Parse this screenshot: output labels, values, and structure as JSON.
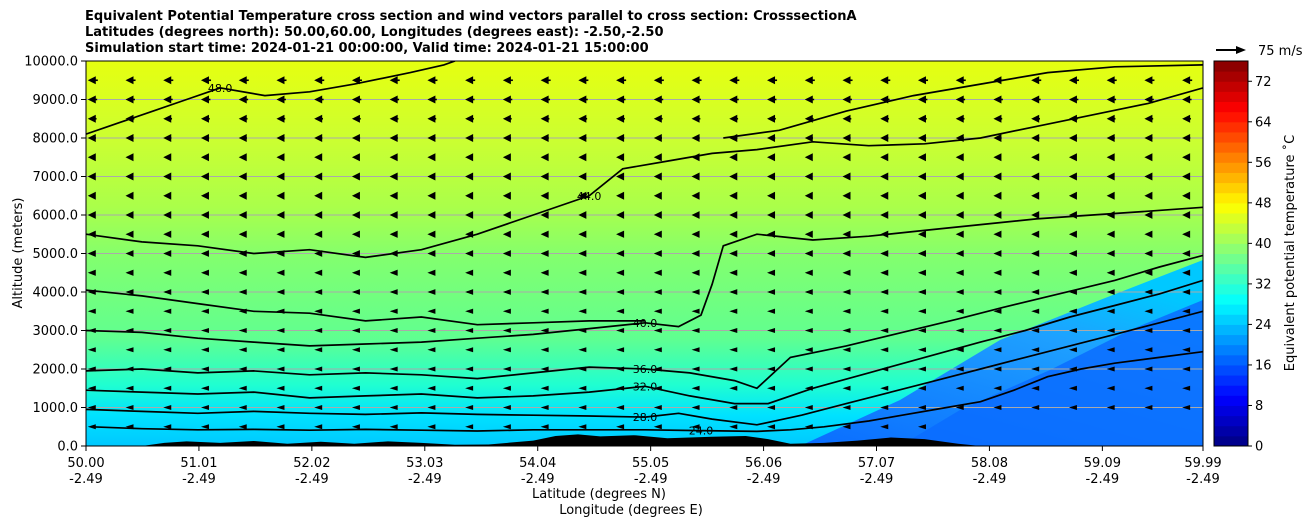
{
  "chart_data": {
    "type": "contourf",
    "title_lines": [
      "Equivalent Potential Temperature cross section and wind vectors parallel to cross section: CrosssectionA",
      "Latitudes (degrees north): 50.00,60.00, Longitudes (degrees east): -2.50,-2.50",
      "Simulation start time: 2024-01-21 00:00:00, Valid time: 2024-01-21 15:00:00"
    ],
    "ylabel": "Altitude (meters)",
    "xlabel_lat": "Latitude (degrees N)",
    "xlabel_lon": "Longitude (degrees E)",
    "ylim": [
      0,
      10000
    ],
    "xlim": [
      50.0,
      59.99
    ],
    "y_ticks": [
      {
        "value": 0,
        "label": "0.0"
      },
      {
        "value": 1000,
        "label": "1000.0"
      },
      {
        "value": 2000,
        "label": "2000.0"
      },
      {
        "value": 3000,
        "label": "3000.0"
      },
      {
        "value": 4000,
        "label": "4000.0"
      },
      {
        "value": 5000,
        "label": "5000.0"
      },
      {
        "value": 6000,
        "label": "6000.0"
      },
      {
        "value": 7000,
        "label": "7000.0"
      },
      {
        "value": 8000,
        "label": "8000.0"
      },
      {
        "value": 9000,
        "label": "9000.0"
      },
      {
        "value": 10000,
        "label": "10000.0"
      }
    ],
    "x_ticks": [
      {
        "value": 50.0,
        "lat": "50.00",
        "lon": "-2.49"
      },
      {
        "value": 51.01,
        "lat": "51.01",
        "lon": "-2.49"
      },
      {
        "value": 52.02,
        "lat": "52.02",
        "lon": "-2.49"
      },
      {
        "value": 53.03,
        "lat": "53.03",
        "lon": "-2.49"
      },
      {
        "value": 54.04,
        "lat": "54.04",
        "lon": "-2.49"
      },
      {
        "value": 55.05,
        "lat": "55.05",
        "lon": "-2.49"
      },
      {
        "value": 56.06,
        "lat": "56.06",
        "lon": "-2.49"
      },
      {
        "value": 57.07,
        "lat": "57.07",
        "lon": "-2.49"
      },
      {
        "value": 58.08,
        "lat": "58.08",
        "lon": "-2.49"
      },
      {
        "value": 59.09,
        "lat": "59.09",
        "lon": "-2.49"
      },
      {
        "value": 59.99,
        "lat": "59.99",
        "lon": "-2.49"
      }
    ],
    "colorbar": {
      "label": "Equivalent potential temperature ˚C",
      "min": 0,
      "max": 76,
      "step": 2,
      "ticks": [
        0,
        8,
        16,
        24,
        32,
        40,
        48,
        56,
        64,
        72
      ]
    },
    "quiver_key": {
      "label": "75 m/s"
    },
    "contours": [
      {
        "level": 24,
        "label": "24.0",
        "points": [
          [
            50.05,
            500
          ],
          [
            50.5,
            450
          ],
          [
            51.0,
            420
          ],
          [
            51.5,
            430
          ],
          [
            52.0,
            410
          ],
          [
            52.5,
            430
          ],
          [
            53.0,
            410
          ],
          [
            53.5,
            390
          ],
          [
            54.0,
            420
          ],
          [
            54.5,
            420
          ],
          [
            55.0,
            420
          ],
          [
            55.5,
            400
          ],
          [
            56.0,
            380
          ],
          [
            56.3,
            420
          ],
          [
            56.6,
            500
          ],
          [
            57.0,
            650
          ],
          [
            57.3,
            800
          ],
          [
            57.6,
            950
          ],
          [
            58.0,
            1150
          ],
          [
            58.3,
            1450
          ],
          [
            58.6,
            1800
          ],
          [
            58.9,
            2000
          ],
          [
            59.2,
            2150
          ],
          [
            59.6,
            2300
          ],
          [
            59.99,
            2450
          ]
        ]
      },
      {
        "level": 28,
        "label": "28.0",
        "points": [
          [
            50.0,
            950
          ],
          [
            50.5,
            900
          ],
          [
            51.0,
            850
          ],
          [
            51.5,
            900
          ],
          [
            52.0,
            850
          ],
          [
            52.5,
            820
          ],
          [
            53.0,
            860
          ],
          [
            53.5,
            820
          ],
          [
            54.0,
            800
          ],
          [
            54.5,
            780
          ],
          [
            55.0,
            750
          ],
          [
            55.3,
            850
          ],
          [
            55.6,
            700
          ],
          [
            56.0,
            550
          ],
          [
            56.4,
            800
          ],
          [
            56.8,
            1100
          ],
          [
            57.2,
            1400
          ],
          [
            57.6,
            1700
          ],
          [
            58.0,
            2000
          ],
          [
            58.4,
            2300
          ],
          [
            58.8,
            2600
          ],
          [
            59.2,
            2900
          ],
          [
            59.6,
            3200
          ],
          [
            59.99,
            3500
          ]
        ]
      },
      {
        "level": 32,
        "label": "32.0",
        "points": [
          [
            50.0,
            1450
          ],
          [
            50.5,
            1400
          ],
          [
            51.0,
            1350
          ],
          [
            51.5,
            1400
          ],
          [
            52.0,
            1250
          ],
          [
            52.5,
            1300
          ],
          [
            53.0,
            1350
          ],
          [
            53.5,
            1250
          ],
          [
            54.0,
            1300
          ],
          [
            54.5,
            1400
          ],
          [
            55.0,
            1550
          ],
          [
            55.4,
            1300
          ],
          [
            55.8,
            1100
          ],
          [
            56.1,
            1100
          ],
          [
            56.5,
            1500
          ],
          [
            57.0,
            1900
          ],
          [
            57.5,
            2300
          ],
          [
            58.0,
            2700
          ],
          [
            58.4,
            3000
          ],
          [
            58.8,
            3350
          ],
          [
            59.2,
            3650
          ],
          [
            59.6,
            3950
          ],
          [
            59.99,
            4300
          ]
        ]
      },
      {
        "level": 36,
        "label": "36.0",
        "points": [
          [
            50.0,
            1950
          ],
          [
            50.5,
            2000
          ],
          [
            51.0,
            1900
          ],
          [
            51.5,
            1950
          ],
          [
            52.0,
            1850
          ],
          [
            52.5,
            1900
          ],
          [
            53.0,
            1850
          ],
          [
            53.5,
            1750
          ],
          [
            54.0,
            1900
          ],
          [
            54.5,
            2050
          ],
          [
            55.0,
            2000
          ],
          [
            55.4,
            1900
          ],
          [
            55.8,
            1700
          ],
          [
            56.0,
            1500
          ],
          [
            56.3,
            2300
          ],
          [
            56.8,
            2600
          ],
          [
            57.3,
            2950
          ],
          [
            57.8,
            3300
          ],
          [
            58.2,
            3600
          ],
          [
            58.7,
            3950
          ],
          [
            59.2,
            4300
          ],
          [
            59.6,
            4650
          ],
          [
            59.99,
            4950
          ]
        ]
      },
      {
        "level": 40,
        "label": "40.0",
        "points": [
          [
            50.0,
            3000
          ],
          [
            50.5,
            2950
          ],
          [
            51.0,
            2800
          ],
          [
            51.5,
            2700
          ],
          [
            52.0,
            2600
          ],
          [
            52.5,
            2650
          ],
          [
            53.0,
            2700
          ],
          [
            53.5,
            2800
          ],
          [
            54.0,
            2900
          ],
          [
            54.5,
            3050
          ],
          [
            55.0,
            3200
          ],
          [
            55.3,
            3100
          ],
          [
            55.5,
            3400
          ],
          [
            55.6,
            4200
          ],
          [
            55.7,
            5200
          ],
          [
            56.0,
            5500
          ],
          [
            56.5,
            5350
          ],
          [
            57.0,
            5450
          ],
          [
            57.5,
            5600
          ],
          [
            58.0,
            5750
          ],
          [
            58.5,
            5900
          ],
          [
            59.0,
            6000
          ],
          [
            59.5,
            6100
          ],
          [
            59.99,
            6200
          ]
        ]
      },
      {
        "level": 40,
        "label": "",
        "points": [
          [
            50.0,
            4050
          ],
          [
            50.5,
            3900
          ],
          [
            51.0,
            3700
          ],
          [
            51.5,
            3500
          ],
          [
            52.0,
            3450
          ],
          [
            52.5,
            3250
          ],
          [
            53.0,
            3350
          ],
          [
            53.5,
            3150
          ],
          [
            54.0,
            3200
          ],
          [
            54.5,
            3250
          ],
          [
            55.0,
            3250
          ]
        ]
      },
      {
        "level": 44,
        "label": "44.0",
        "points": [
          [
            50.0,
            5500
          ],
          [
            50.5,
            5300
          ],
          [
            51.0,
            5200
          ],
          [
            51.5,
            5000
          ],
          [
            52.0,
            5100
          ],
          [
            52.5,
            4900
          ],
          [
            53.0,
            5100
          ],
          [
            53.5,
            5500
          ],
          [
            54.0,
            6000
          ],
          [
            54.5,
            6500
          ],
          [
            54.8,
            7200
          ],
          [
            55.2,
            7400
          ],
          [
            55.6,
            7600
          ],
          [
            56.0,
            7700
          ],
          [
            56.5,
            7900
          ],
          [
            57.0,
            7800
          ],
          [
            57.5,
            7850
          ],
          [
            58.0,
            8000
          ],
          [
            58.5,
            8300
          ],
          [
            59.0,
            8600
          ],
          [
            59.5,
            8900
          ],
          [
            59.99,
            9300
          ]
        ]
      },
      {
        "level": 48,
        "label": "48.0",
        "points": [
          [
            50.0,
            8100
          ],
          [
            50.3,
            8400
          ],
          [
            50.6,
            8700
          ],
          [
            50.9,
            9000
          ],
          [
            51.2,
            9300
          ],
          [
            51.6,
            9100
          ],
          [
            52.0,
            9200
          ],
          [
            52.4,
            9400
          ],
          [
            52.9,
            9700
          ],
          [
            53.2,
            9900
          ],
          [
            53.3,
            10000
          ]
        ]
      },
      {
        "level": 48,
        "label": "",
        "points": [
          [
            55.7,
            8000
          ],
          [
            56.2,
            8200
          ],
          [
            56.8,
            8700
          ],
          [
            57.4,
            9100
          ],
          [
            58.0,
            9400
          ],
          [
            58.6,
            9700
          ],
          [
            59.2,
            9850
          ],
          [
            59.99,
            9900
          ]
        ]
      }
    ],
    "terrain": [
      [
        50.0,
        0
      ],
      [
        50.5,
        0
      ],
      [
        50.7,
        80
      ],
      [
        50.9,
        120
      ],
      [
        51.2,
        80
      ],
      [
        51.5,
        130
      ],
      [
        51.8,
        60
      ],
      [
        52.1,
        110
      ],
      [
        52.4,
        60
      ],
      [
        52.7,
        120
      ],
      [
        53.0,
        80
      ],
      [
        53.3,
        30
      ],
      [
        53.6,
        40
      ],
      [
        54.0,
        140
      ],
      [
        54.2,
        260
      ],
      [
        54.4,
        300
      ],
      [
        54.6,
        250
      ],
      [
        54.9,
        280
      ],
      [
        55.2,
        200
      ],
      [
        55.6,
        240
      ],
      [
        55.9,
        260
      ],
      [
        56.1,
        180
      ],
      [
        56.3,
        60
      ],
      [
        56.6,
        80
      ],
      [
        56.9,
        140
      ],
      [
        57.2,
        220
      ],
      [
        57.5,
        180
      ],
      [
        57.8,
        60
      ],
      [
        58.0,
        0
      ],
      [
        59.99,
        0
      ]
    ],
    "wind_u": {
      "levels_m": [
        500,
        1000,
        1500,
        2000,
        2500,
        3000,
        3500,
        4000,
        4500,
        5000,
        5500,
        6000,
        6500,
        7000,
        7500,
        8000,
        8500,
        9000,
        9500
      ],
      "left_to_right_speed_top": 55,
      "direction": "westward"
    }
  }
}
